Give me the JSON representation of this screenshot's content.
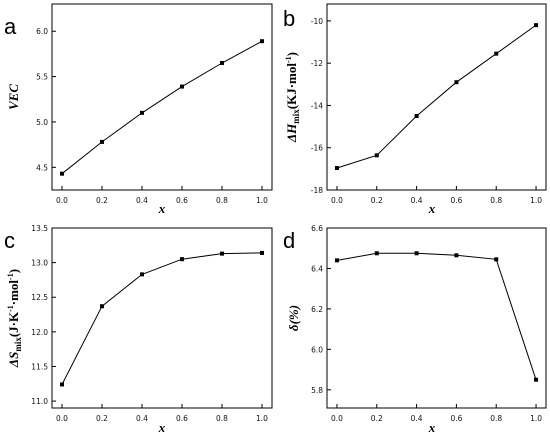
{
  "chart_data": [
    {
      "panel": "a",
      "type": "line",
      "x": [
        0.0,
        0.2,
        0.4,
        0.6,
        0.8,
        1.0
      ],
      "values": [
        4.43,
        4.78,
        5.1,
        5.39,
        5.65,
        5.89
      ],
      "xlabel": "x",
      "ylabel": "VEC",
      "xlim": [
        -0.05,
        1.05
      ],
      "ylim": [
        4.25,
        6.3
      ],
      "xticks": [
        "0.0",
        "0.2",
        "0.4",
        "0.6",
        "0.8",
        "1.0"
      ],
      "yticks": [
        "4.5",
        "5.0",
        "5.5",
        "6.0"
      ],
      "ytick_values": [
        4.5,
        5.0,
        5.5,
        6.0
      ],
      "marker": "square",
      "grid": false
    },
    {
      "panel": "b",
      "type": "line",
      "x": [
        0.0,
        0.2,
        0.4,
        0.6,
        0.8,
        1.0
      ],
      "values": [
        -16.96,
        -16.36,
        -14.5,
        -12.9,
        -11.55,
        -10.2
      ],
      "xlabel": "x",
      "ylabel": "ΔH",
      "ylabel_sub": "mix",
      "ylabel_unit": "(KJ·mol",
      "ylabel_sup": "-1",
      "ylabel_end": ")",
      "xlim": [
        -0.05,
        1.05
      ],
      "ylim": [
        -18,
        -9.2
      ],
      "xticks": [
        "0.0",
        "0.2",
        "0.4",
        "0.6",
        "0.8",
        "1.0"
      ],
      "yticks": [
        "-18",
        "-16",
        "-14",
        "-12",
        "-10"
      ],
      "ytick_values": [
        -18,
        -16,
        -14,
        -12,
        -10
      ],
      "marker": "square",
      "grid": false
    },
    {
      "panel": "c",
      "type": "line",
      "x": [
        0.0,
        0.2,
        0.4,
        0.6,
        0.8,
        1.0
      ],
      "values": [
        11.24,
        12.37,
        12.83,
        13.05,
        13.13,
        13.14
      ],
      "xlabel": "x",
      "ylabel": "ΔS",
      "ylabel_sub": "mix",
      "ylabel_unit": "(J·K",
      "ylabel_sup": "-1",
      "ylabel_mid": "·mol",
      "ylabel_sup2": "-1",
      "ylabel_end": ")",
      "xlim": [
        -0.05,
        1.05
      ],
      "ylim": [
        10.9,
        13.5
      ],
      "xticks": [
        "0.0",
        "0.2",
        "0.4",
        "0.6",
        "0.8",
        "1.0"
      ],
      "yticks": [
        "11.0",
        "11.5",
        "12.0",
        "12.5",
        "13.0",
        "13.5"
      ],
      "ytick_values": [
        11.0,
        11.5,
        12.0,
        12.5,
        13.0,
        13.5
      ],
      "marker": "square",
      "grid": false
    },
    {
      "panel": "d",
      "type": "line",
      "x": [
        0.0,
        0.2,
        0.4,
        0.6,
        0.8,
        1.0
      ],
      "values": [
        6.44,
        6.475,
        6.475,
        6.465,
        6.445,
        5.85
      ],
      "xlabel": "x",
      "ylabel": "δ(%)",
      "xlim": [
        -0.05,
        1.05
      ],
      "ylim": [
        5.71,
        6.6
      ],
      "xticks": [
        "0.0",
        "0.2",
        "0.4",
        "0.6",
        "0.8",
        "1.0"
      ],
      "yticks": [
        "5.8",
        "6.0",
        "6.2",
        "6.4",
        "6.6"
      ],
      "ytick_values": [
        5.8,
        6.0,
        6.2,
        6.4,
        6.6
      ],
      "marker": "square",
      "grid": false
    }
  ],
  "panel_labels": [
    "a",
    "b",
    "c",
    "d"
  ],
  "colors": {
    "line": "#000000",
    "marker": "#000000",
    "axis": "#000000",
    "background": "#ffffff"
  }
}
